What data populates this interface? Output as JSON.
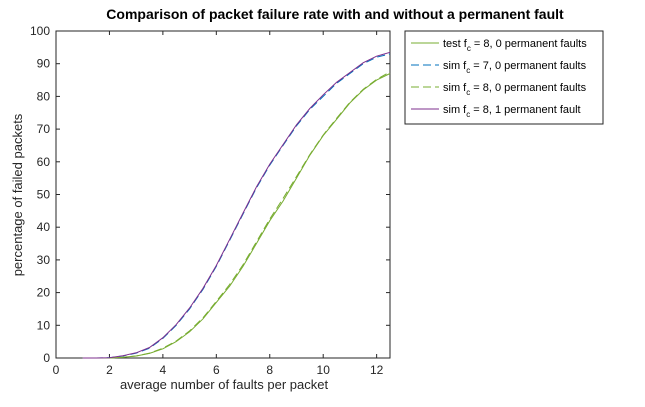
{
  "chart_data": {
    "type": "line",
    "title": "Comparison of packet failure rate with and without a permanent fault",
    "xlabel": "average number of faults per packet",
    "ylabel": "percentage of failed packets",
    "xlim": [
      0,
      12.5
    ],
    "ylim": [
      0,
      100
    ],
    "xticks": [
      0,
      2,
      4,
      6,
      8,
      10,
      12
    ],
    "yticks": [
      0,
      10,
      20,
      30,
      40,
      50,
      60,
      70,
      80,
      90,
      100
    ],
    "grid": false,
    "legend_position": "outside-top-right",
    "x": [
      1,
      1.5,
      2,
      2.5,
      3,
      3.5,
      4,
      4.5,
      5,
      5.5,
      6,
      6.5,
      7,
      7.5,
      8,
      8.5,
      9,
      9.5,
      10,
      10.5,
      11,
      11.5,
      12,
      12.5
    ],
    "series": [
      {
        "name": "test f_c = 8, 0 permanent faults",
        "legend_label": [
          "test f",
          "c",
          " = 8, 0 permanent faults"
        ],
        "color": "#77ac30",
        "dash": "solid",
        "values": [
          0,
          0,
          0,
          0.2,
          0.6,
          1.4,
          2.8,
          5,
          8,
          12,
          17,
          22,
          28,
          35,
          42,
          48,
          55,
          62,
          68,
          73,
          78,
          82,
          85,
          87
        ]
      },
      {
        "name": "sim f_c = 7, 0 permanent faults",
        "legend_label": [
          "sim f",
          "c",
          " = 7, 0 permanent faults"
        ],
        "color": "#0072bd",
        "dash": "dashed",
        "values": [
          0,
          0,
          0.1,
          0.6,
          1.5,
          3,
          6,
          10,
          15,
          21,
          28,
          36,
          44,
          52,
          59,
          65,
          71,
          76,
          80,
          84,
          87,
          90,
          92,
          93
        ]
      },
      {
        "name": "sim f_c = 8, 0 permanent faults",
        "legend_label": [
          "sim f",
          "c",
          " = 8, 0 permanent faults"
        ],
        "color": "#77ac30",
        "dash": "dashed",
        "values": [
          0,
          0,
          0,
          0.2,
          0.6,
          1.5,
          3,
          5.2,
          8.3,
          12.3,
          17.3,
          22.5,
          28.5,
          35.5,
          42.5,
          48.8,
          55.5,
          62.2,
          68.2,
          73.3,
          78.2,
          82.2,
          85.2,
          87.5
        ]
      },
      {
        "name": "sim f_c = 8, 1 permanent fault",
        "legend_label": [
          "sim f",
          "c",
          " = 8, 1 permanent fault"
        ],
        "color": "#7e2f8e",
        "dash": "solid",
        "values": [
          0,
          0,
          0.1,
          0.7,
          1.6,
          3.2,
          6.2,
          10.2,
          15.3,
          21.3,
          28.3,
          36.3,
          44.3,
          52.3,
          59.3,
          65.3,
          71.3,
          76.3,
          80.5,
          84.3,
          87.3,
          90.3,
          92.3,
          93.5
        ]
      }
    ]
  }
}
